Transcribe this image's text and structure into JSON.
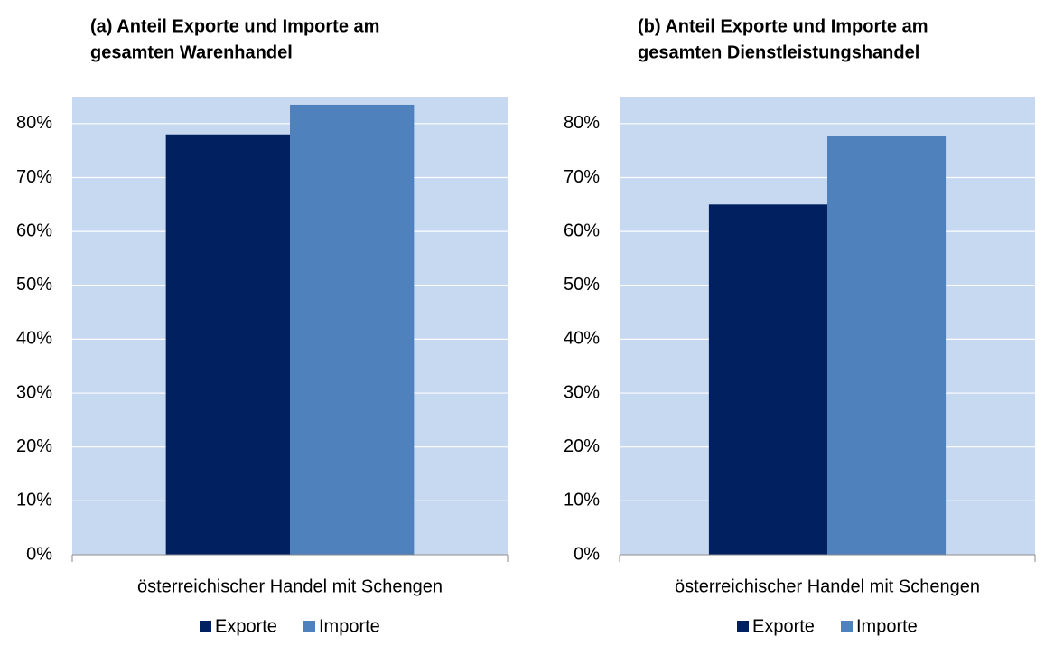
{
  "chart_data": [
    {
      "type": "bar",
      "title": [
        "(a) Anteil Exporte und Importe am",
        "gesamten Warenhandel"
      ],
      "categories": [
        "österreichischer Handel mit Schengen"
      ],
      "series": [
        {
          "name": "Exporte",
          "color": "#002060",
          "values": [
            78
          ]
        },
        {
          "name": "Importe",
          "color": "#4f81bd",
          "values": [
            83.5
          ]
        }
      ],
      "ylim": [
        0,
        85
      ],
      "yticks": [
        {
          "value": 0,
          "label": "0%"
        },
        {
          "value": 10,
          "label": "10%"
        },
        {
          "value": 20,
          "label": "20%"
        },
        {
          "value": 30,
          "label": "30%"
        },
        {
          "value": 40,
          "label": "40%"
        },
        {
          "value": 50,
          "label": "50%"
        },
        {
          "value": 60,
          "label": "60%"
        },
        {
          "value": 70,
          "label": "70%"
        },
        {
          "value": 80,
          "label": "80%"
        }
      ],
      "grid": true,
      "legend": "bottom"
    },
    {
      "type": "bar",
      "title": [
        "(b) Anteil Exporte und Importe am",
        "gesamten Dienstleistungshandel"
      ],
      "categories": [
        "österreichischer Handel mit Schengen"
      ],
      "series": [
        {
          "name": "Exporte",
          "color": "#002060",
          "values": [
            65
          ]
        },
        {
          "name": "Importe",
          "color": "#4f81bd",
          "values": [
            77.7
          ]
        }
      ],
      "ylim": [
        0,
        85
      ],
      "yticks": [
        {
          "value": 0,
          "label": "0%"
        },
        {
          "value": 10,
          "label": "10%"
        },
        {
          "value": 20,
          "label": "20%"
        },
        {
          "value": 30,
          "label": "30%"
        },
        {
          "value": 40,
          "label": "40%"
        },
        {
          "value": 50,
          "label": "50%"
        },
        {
          "value": 60,
          "label": "60%"
        },
        {
          "value": 70,
          "label": "70%"
        },
        {
          "value": 80,
          "label": "80%"
        }
      ],
      "grid": true,
      "legend": "bottom"
    }
  ]
}
